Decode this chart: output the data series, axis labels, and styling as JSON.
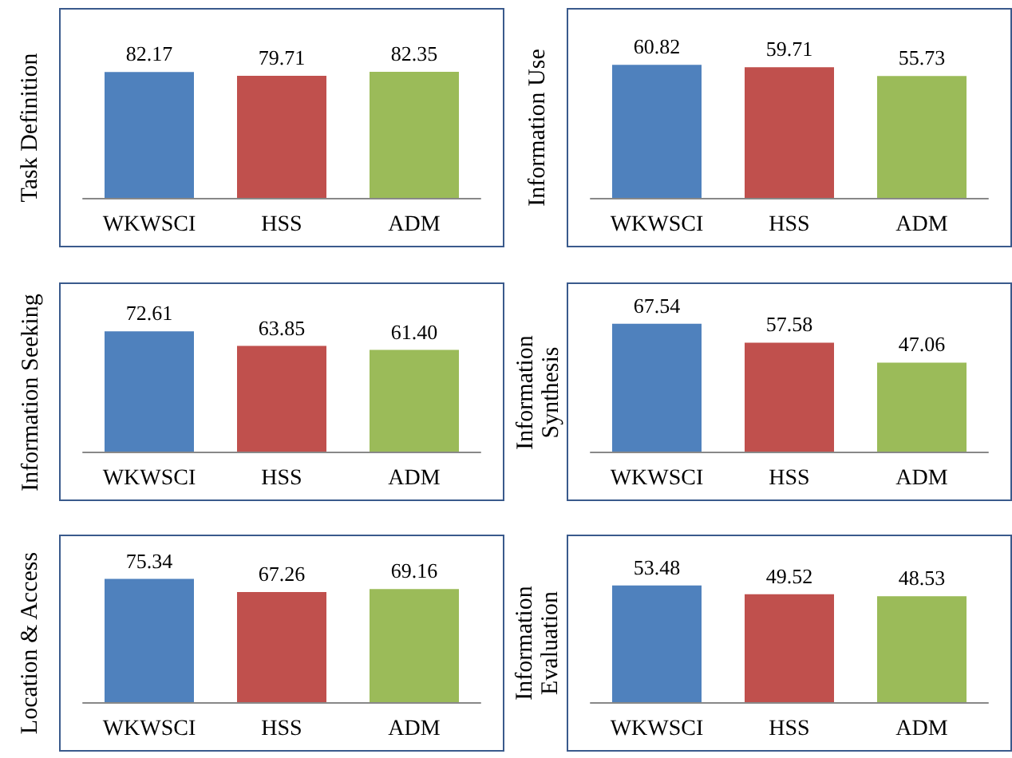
{
  "chart_data": [
    {
      "type": "bar",
      "ylabel": "Task Definition",
      "categories": [
        "WKWSCI",
        "HSS",
        "ADM"
      ],
      "values": [
        82.17,
        79.71,
        82.35
      ],
      "colors": [
        "#4f81bd",
        "#c0504d",
        "#9bbb59"
      ],
      "data_labels": true
    },
    {
      "type": "bar",
      "ylabel": "Information Use",
      "categories": [
        "WKWSCI",
        "HSS",
        "ADM"
      ],
      "values": [
        60.82,
        59.71,
        55.73
      ],
      "colors": [
        "#4f81bd",
        "#c0504d",
        "#9bbb59"
      ],
      "data_labels": true
    },
    {
      "type": "bar",
      "ylabel": "Information Seeking",
      "categories": [
        "WKWSCI",
        "HSS",
        "ADM"
      ],
      "values": [
        72.61,
        63.85,
        61.4
      ],
      "value_labels": [
        "72.61",
        "63.85",
        "61.40"
      ],
      "colors": [
        "#4f81bd",
        "#c0504d",
        "#9bbb59"
      ]
    },
    {
      "type": "bar",
      "ylabel": "Information\nSynthesis",
      "categories": [
        "WKWSCI",
        "HSS",
        "ADM"
      ],
      "values": [
        67.54,
        57.58,
        47.06
      ],
      "colors": [
        "#4f81bd",
        "#c0504d",
        "#9bbb59"
      ],
      "data_labels": true
    },
    {
      "type": "bar",
      "ylabel": "Location & Access",
      "categories": [
        "WKWSCI",
        "HSS",
        "ADM"
      ],
      "values": [
        75.34,
        67.26,
        69.16
      ],
      "colors": [
        "#4f81bd",
        "#c0504d",
        "#9bbb59"
      ],
      "data_labels": true
    },
    {
      "type": "bar",
      "ylabel": "Information\nEvaluation",
      "categories": [
        "WKWSCI",
        "HSS",
        "ADM"
      ],
      "values": [
        53.48,
        49.52,
        48.53
      ],
      "colors": [
        "#4f81bd",
        "#c0504d",
        "#9bbb59"
      ],
      "data_labels": true
    }
  ]
}
